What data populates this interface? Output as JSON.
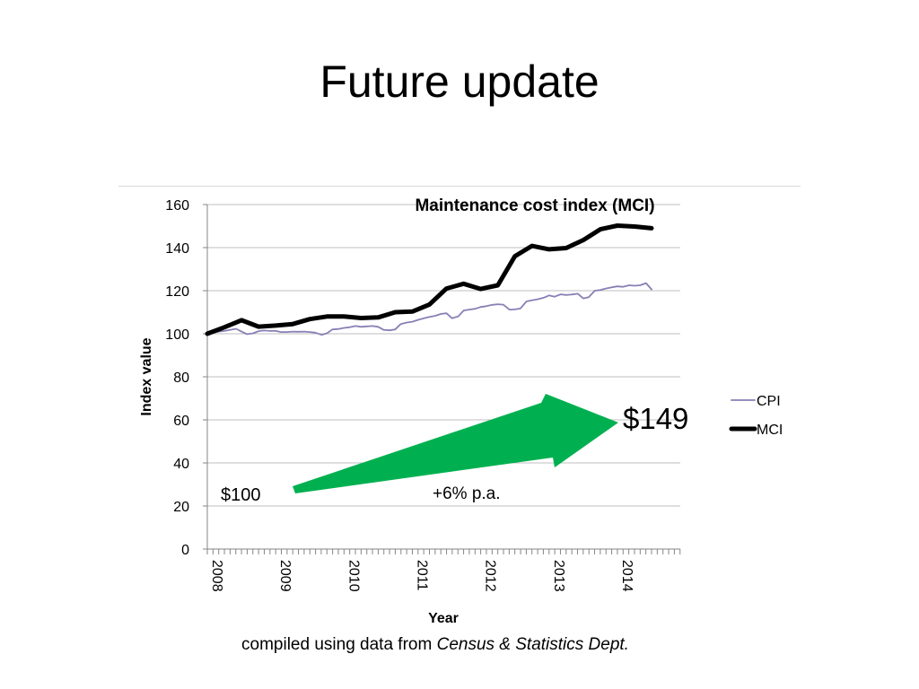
{
  "slide": {
    "title": "Future update",
    "footer_prefix": "compiled using data from ",
    "footer_source": "Census & Statistics Dept."
  },
  "annotations": {
    "start_value": "$100",
    "end_value": "$149",
    "growth_rate": "+6% p.a."
  },
  "colors": {
    "cpi": "#8a7fb5",
    "mci": "#000000",
    "arrow": "#00b050",
    "grid": "#bfbfbf"
  },
  "chart_data": {
    "type": "line",
    "title": "Maintenance cost index (MCI)",
    "xlabel": "Year",
    "ylabel": "Index value",
    "ylim": [
      0,
      160
    ],
    "yticks": [
      0,
      20,
      40,
      60,
      80,
      100,
      120,
      140,
      160
    ],
    "xlim": [
      2008,
      2014.92
    ],
    "xticks": [
      "2008",
      "2009",
      "2010",
      "2011",
      "2012",
      "2013",
      "2014"
    ],
    "grid": true,
    "legend_position": "right",
    "series": [
      {
        "name": "CPI",
        "points": [
          [
            2008.0,
            100.0
          ],
          [
            2008.08,
            100.5
          ],
          [
            2008.17,
            101.0
          ],
          [
            2008.25,
            101.3
          ],
          [
            2008.33,
            101.8
          ],
          [
            2008.42,
            102.3
          ],
          [
            2008.5,
            101.0
          ],
          [
            2008.58,
            99.8
          ],
          [
            2008.67,
            100.2
          ],
          [
            2008.75,
            101.2
          ],
          [
            2008.83,
            101.5
          ],
          [
            2008.92,
            101.3
          ],
          [
            2009.0,
            101.3
          ],
          [
            2009.08,
            100.8
          ],
          [
            2009.17,
            100.8
          ],
          [
            2009.25,
            101.0
          ],
          [
            2009.33,
            100.9
          ],
          [
            2009.42,
            101.0
          ],
          [
            2009.5,
            100.8
          ],
          [
            2009.58,
            100.5
          ],
          [
            2009.67,
            99.5
          ],
          [
            2009.75,
            100.2
          ],
          [
            2009.83,
            102.0
          ],
          [
            2009.92,
            102.2
          ],
          [
            2010.0,
            102.7
          ],
          [
            2010.08,
            103.0
          ],
          [
            2010.17,
            103.6
          ],
          [
            2010.25,
            103.2
          ],
          [
            2010.33,
            103.4
          ],
          [
            2010.42,
            103.6
          ],
          [
            2010.5,
            103.2
          ],
          [
            2010.58,
            101.8
          ],
          [
            2010.67,
            101.6
          ],
          [
            2010.75,
            102.0
          ],
          [
            2010.83,
            104.5
          ],
          [
            2010.92,
            105.2
          ],
          [
            2011.0,
            105.6
          ],
          [
            2011.08,
            106.4
          ],
          [
            2011.17,
            107.2
          ],
          [
            2011.25,
            107.8
          ],
          [
            2011.33,
            108.3
          ],
          [
            2011.42,
            109.2
          ],
          [
            2011.5,
            109.5
          ],
          [
            2011.58,
            107.2
          ],
          [
            2011.67,
            108.0
          ],
          [
            2011.75,
            110.8
          ],
          [
            2011.83,
            111.2
          ],
          [
            2011.92,
            111.6
          ],
          [
            2012.0,
            112.4
          ],
          [
            2012.08,
            112.8
          ],
          [
            2012.17,
            113.4
          ],
          [
            2012.25,
            113.7
          ],
          [
            2012.33,
            113.5
          ],
          [
            2012.42,
            111.2
          ],
          [
            2012.5,
            111.3
          ],
          [
            2012.58,
            111.7
          ],
          [
            2012.67,
            115.0
          ],
          [
            2012.75,
            115.5
          ],
          [
            2012.83,
            116.0
          ],
          [
            2012.92,
            116.7
          ],
          [
            2013.0,
            117.8
          ],
          [
            2013.08,
            117.2
          ],
          [
            2013.17,
            118.3
          ],
          [
            2013.25,
            118.0
          ],
          [
            2013.33,
            118.2
          ],
          [
            2013.42,
            118.6
          ],
          [
            2013.5,
            116.4
          ],
          [
            2013.58,
            117.0
          ],
          [
            2013.67,
            120.0
          ],
          [
            2013.75,
            120.3
          ],
          [
            2013.83,
            121.0
          ],
          [
            2013.92,
            121.6
          ],
          [
            2014.0,
            122.0
          ],
          [
            2014.08,
            121.8
          ],
          [
            2014.17,
            122.5
          ],
          [
            2014.25,
            122.3
          ],
          [
            2014.33,
            122.5
          ],
          [
            2014.42,
            123.5
          ],
          [
            2014.5,
            120.6
          ]
        ]
      },
      {
        "name": "MCI",
        "points": [
          [
            2008.0,
            100.0
          ],
          [
            2008.25,
            103.0
          ],
          [
            2008.5,
            106.3
          ],
          [
            2008.75,
            103.3
          ],
          [
            2009.0,
            103.8
          ],
          [
            2009.25,
            104.5
          ],
          [
            2009.5,
            106.8
          ],
          [
            2009.75,
            108.0
          ],
          [
            2010.0,
            108.0
          ],
          [
            2010.25,
            107.3
          ],
          [
            2010.5,
            107.6
          ],
          [
            2010.75,
            110.0
          ],
          [
            2011.0,
            110.3
          ],
          [
            2011.25,
            113.6
          ],
          [
            2011.5,
            121.0
          ],
          [
            2011.75,
            123.2
          ],
          [
            2012.0,
            120.8
          ],
          [
            2012.25,
            122.5
          ],
          [
            2012.5,
            136.0
          ],
          [
            2012.75,
            140.8
          ],
          [
            2013.0,
            139.2
          ],
          [
            2013.25,
            139.8
          ],
          [
            2013.5,
            143.5
          ],
          [
            2013.75,
            148.5
          ],
          [
            2014.0,
            150.2
          ],
          [
            2014.25,
            149.8
          ],
          [
            2014.5,
            149.0
          ]
        ]
      }
    ]
  }
}
